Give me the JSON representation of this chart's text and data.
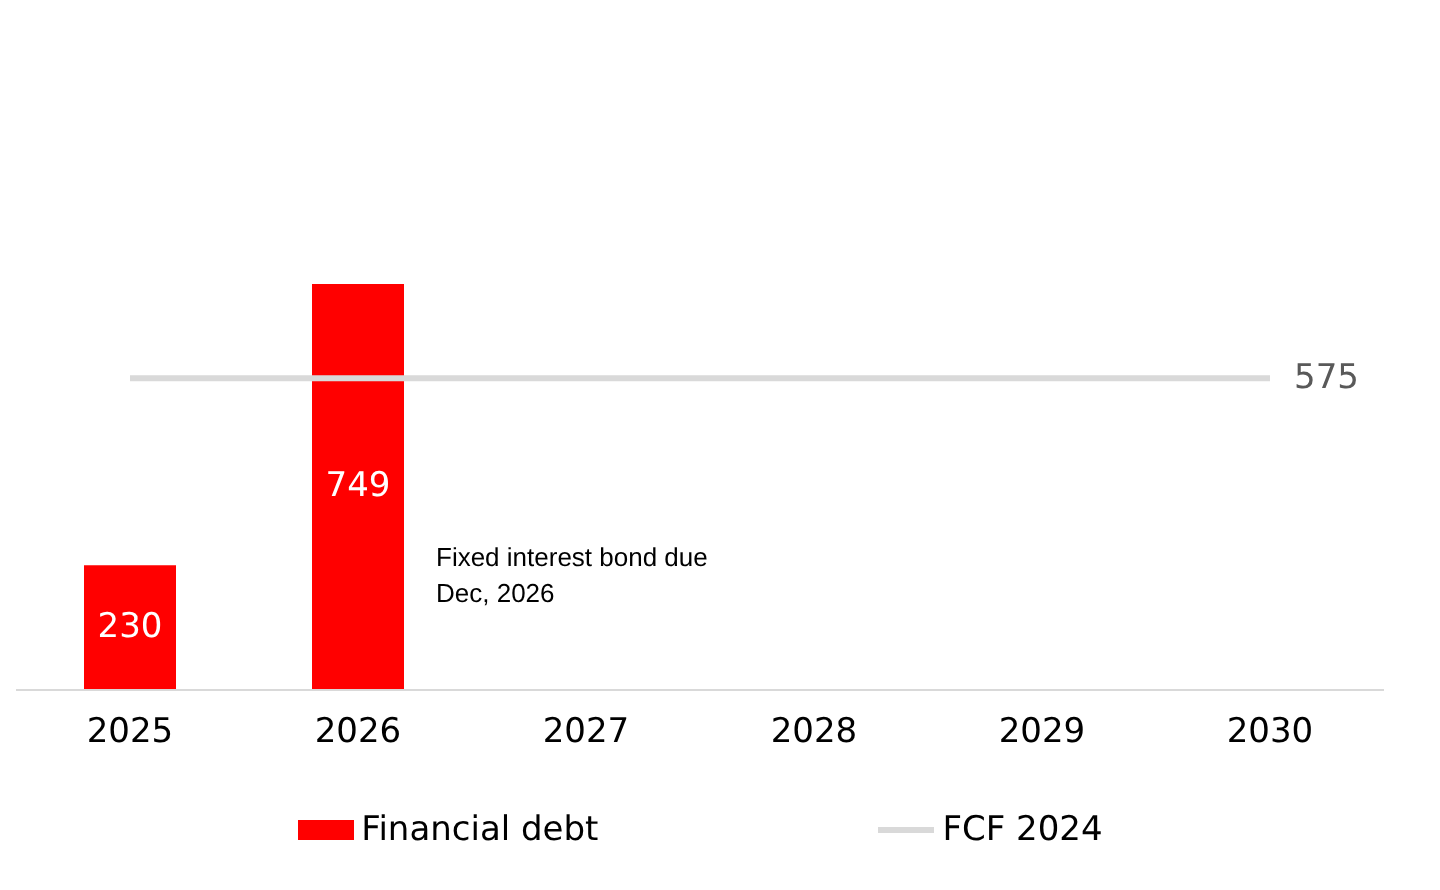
{
  "chart_data": {
    "type": "bar",
    "categories": [
      "2025",
      "2026",
      "2027",
      "2028",
      "2029",
      "2030"
    ],
    "series": [
      {
        "name": "Financial debt",
        "color": "#ff0000",
        "values": [
          230,
          749,
          null,
          null,
          null,
          null
        ],
        "value_labels": [
          "230",
          "749",
          null,
          null,
          null,
          null
        ]
      },
      {
        "name": "FCF 2024",
        "type": "line",
        "color": "#d9d9d9",
        "values": [
          575,
          575,
          575,
          575,
          575,
          575
        ],
        "value_labels": [
          null,
          null,
          null,
          null,
          null,
          "575"
        ]
      }
    ],
    "grid": false,
    "legend": "bottom",
    "marker": "none",
    "annotations": [
      "Fixed interest bond due Dec, 2026"
    ]
  }
}
